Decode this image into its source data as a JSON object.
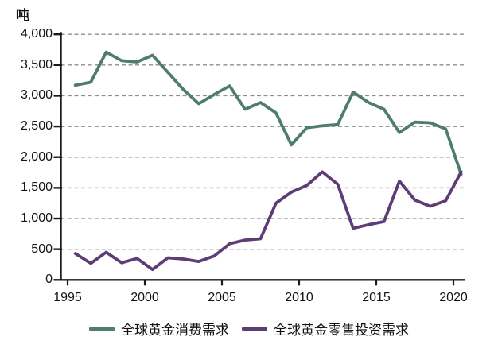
{
  "unit_label": "吨",
  "chart_data": {
    "type": "line",
    "title": "",
    "unit": "吨",
    "x": [
      1995,
      1996,
      1997,
      1998,
      1999,
      2000,
      2001,
      2002,
      2003,
      2004,
      2005,
      2006,
      2007,
      2008,
      2009,
      2010,
      2011,
      2012,
      2013,
      2014,
      2015,
      2016,
      2017,
      2018,
      2019,
      2020
    ],
    "xticks": [
      "1995",
      "2000",
      "2005",
      "2010",
      "2015",
      "2020"
    ],
    "xtick_years": [
      1995,
      2000,
      2005,
      2010,
      2015,
      2020
    ],
    "ylim": [
      0,
      4000
    ],
    "ytick_step": 500,
    "yticklabels": [
      "0",
      "500",
      "1,000",
      "1,500",
      "2,000",
      "2,500",
      "3,000",
      "3,500",
      "4,000"
    ],
    "grid": "horizontal-dashed",
    "grid_color": "#8f8f8f",
    "axis_color": "#1a1a1a",
    "legend_position": "bottom",
    "series": [
      {
        "name": "全球黄金消费需求",
        "color": "#4e7d68",
        "values": [
          3170,
          3220,
          3710,
          3570,
          3550,
          3660,
          3380,
          3100,
          2870,
          3020,
          3160,
          2780,
          2890,
          2720,
          2200,
          2480,
          2510,
          2530,
          3060,
          2890,
          2780,
          2400,
          2570,
          2560,
          2460,
          1720
        ]
      },
      {
        "name": "全球黄金零售投资需求",
        "color": "#5e3d76",
        "values": [
          430,
          270,
          450,
          280,
          350,
          170,
          360,
          340,
          300,
          390,
          590,
          650,
          670,
          1250,
          1430,
          1540,
          1760,
          1560,
          840,
          900,
          950,
          1610,
          1300,
          1200,
          1290,
          1760
        ]
      }
    ]
  }
}
